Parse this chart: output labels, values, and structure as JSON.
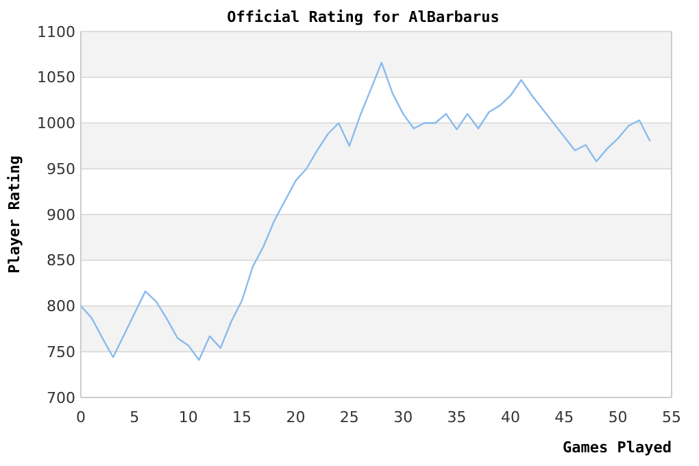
{
  "chart_data": {
    "type": "line",
    "title": "Official Rating for AlBarbarus",
    "xlabel": "Games Played",
    "ylabel": "Player Rating",
    "x": [
      0,
      1,
      2,
      3,
      4,
      5,
      6,
      7,
      8,
      9,
      10,
      11,
      12,
      13,
      14,
      15,
      16,
      17,
      18,
      19,
      20,
      21,
      22,
      23,
      24,
      25,
      26,
      27,
      28,
      29,
      30,
      31,
      32,
      33,
      34,
      35,
      36,
      37,
      38,
      39,
      40,
      41,
      42,
      43,
      44,
      45,
      46,
      47,
      48,
      49,
      50,
      51,
      52,
      53
    ],
    "series": [
      {
        "color": "#88bbee",
        "values": [
          800,
          787,
          765,
          744,
          768,
          792,
          816,
          805,
          786,
          765,
          757,
          741,
          767,
          754,
          783,
          806,
          843,
          865,
          893,
          915,
          937,
          950,
          970,
          988,
          1000,
          975,
          1008,
          1037,
          1066,
          1033,
          1010,
          994,
          1000,
          1000,
          1010,
          993,
          1010,
          994,
          1012,
          1019,
          1030,
          1047,
          1030,
          1015,
          1000,
          985,
          970,
          976,
          958,
          972,
          983,
          997,
          1003,
          980
        ]
      }
    ],
    "xlim": [
      0,
      55
    ],
    "xticks": [
      0,
      5,
      10,
      15,
      20,
      25,
      30,
      35,
      40,
      45,
      50,
      55
    ],
    "ylim": [
      700,
      1100
    ],
    "yticks": [
      700,
      750,
      800,
      850,
      900,
      950,
      1000,
      1050,
      1100
    ],
    "grid": "y",
    "marker": "none",
    "line_style": "solid"
  }
}
